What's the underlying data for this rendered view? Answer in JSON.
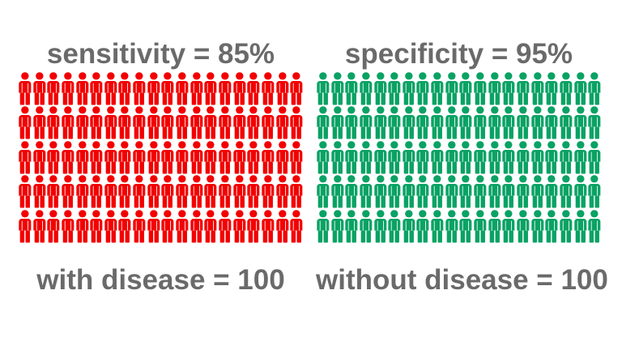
{
  "background": "#FFFFFF",
  "text_color": "#6A6A6A",
  "chart_data": [
    {
      "type": "pictogram",
      "title": "sensitivity = 85%",
      "group_label": "with disease = 100",
      "metric": "sensitivity",
      "value_percent": 85,
      "population": 100,
      "icons": {
        "glyph": "person-icon",
        "rows": 5,
        "cols": 20,
        "total": 100,
        "color": "#F20000"
      }
    },
    {
      "type": "pictogram",
      "title": "specificity = 95%",
      "group_label": "without disease = 100",
      "metric": "specificity",
      "value_percent": 95,
      "population": 100,
      "icons": {
        "glyph": "person-icon",
        "rows": 5,
        "cols": 20,
        "total": 100,
        "color": "#0AA264"
      }
    }
  ]
}
